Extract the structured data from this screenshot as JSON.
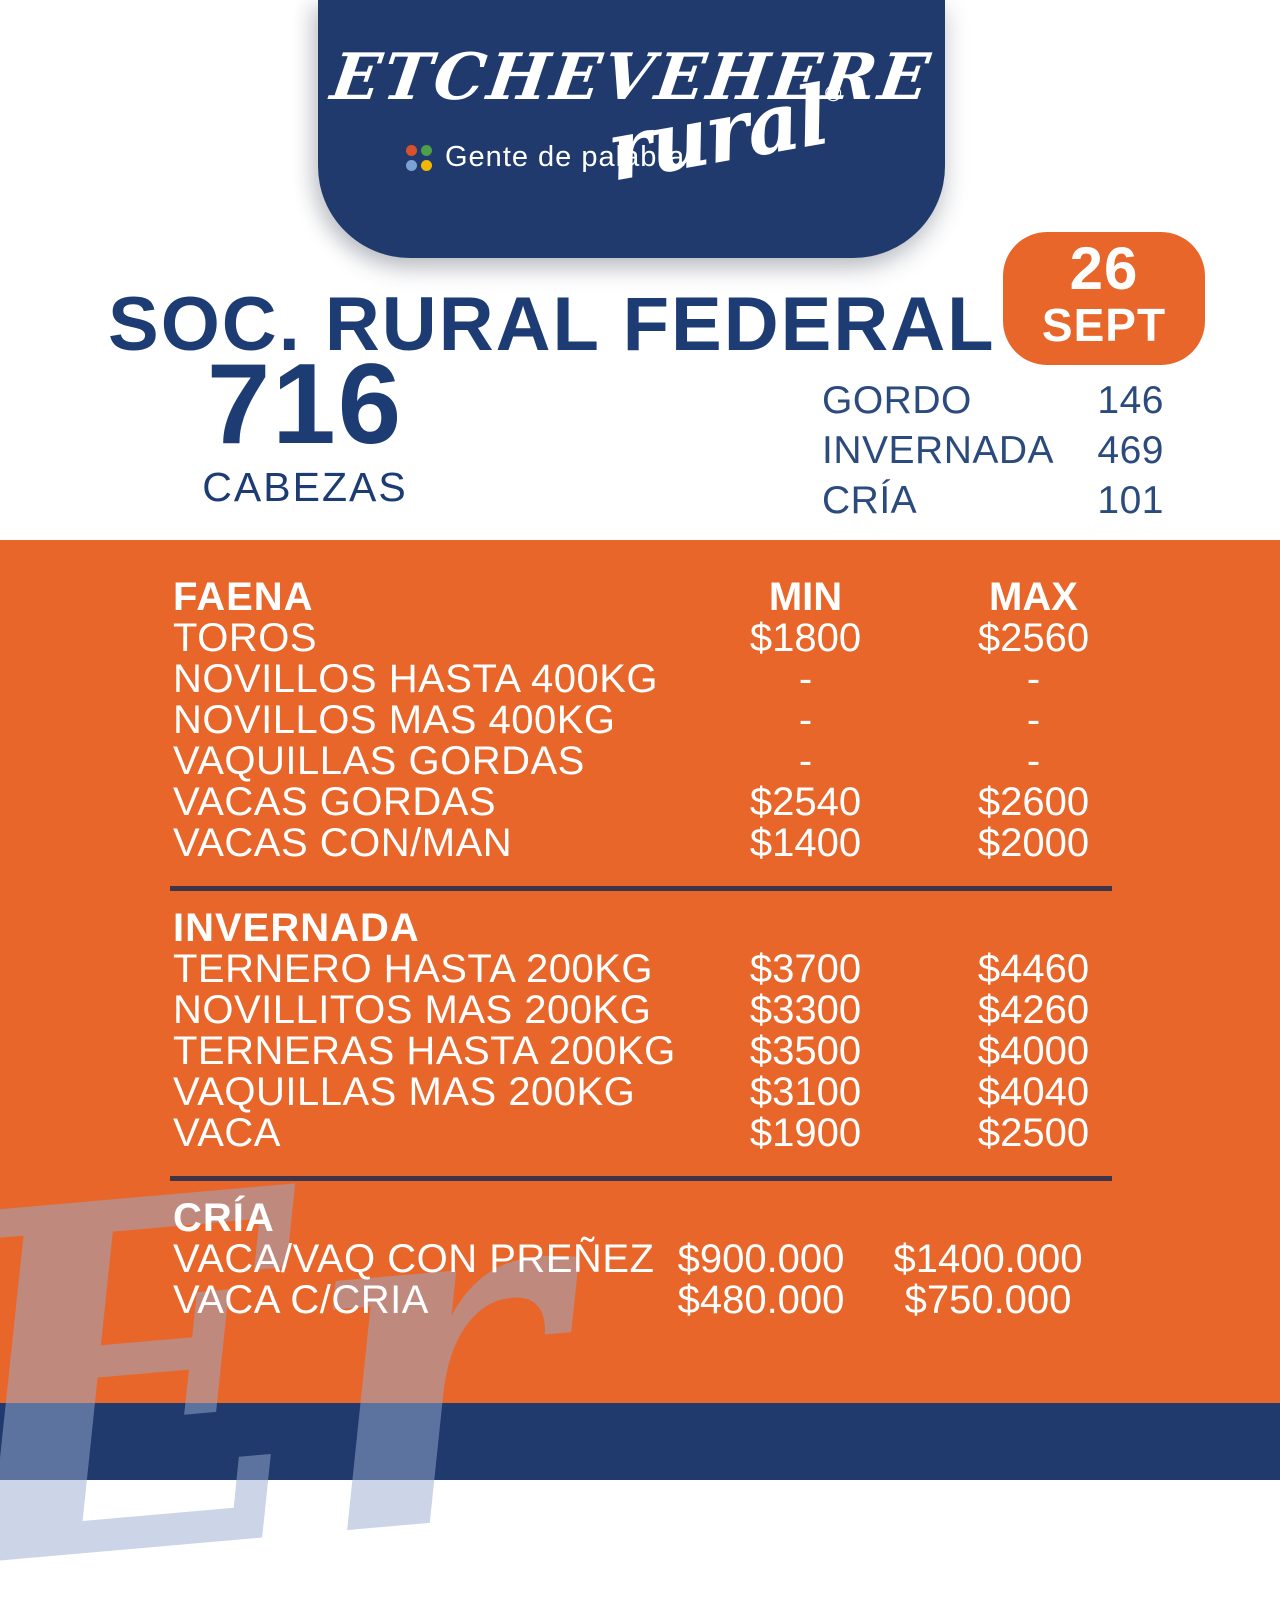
{
  "brand": {
    "logo_main": "ETCHEVEHERE",
    "logo_script": "rural",
    "registered_mark": "®",
    "tagline": "Gente de palabra.",
    "dot_colors": [
      "#d9512c",
      "#4e9e4a",
      "#7ba1d7",
      "#f2b705"
    ]
  },
  "date_badge": {
    "day": "26",
    "month": "SEPT"
  },
  "header": {
    "title": "SOC. RURAL FEDERAL",
    "head_count": "716",
    "head_count_label": "CABEZAS",
    "summary": [
      {
        "label": "GORDO",
        "value": "146"
      },
      {
        "label": "INVERNADA",
        "value": "469"
      },
      {
        "label": "CRÍA",
        "value": "101"
      }
    ]
  },
  "price_table": {
    "columns": {
      "min": "MIN",
      "max": "MAX"
    },
    "sections": [
      {
        "title": "FAENA",
        "rows": [
          {
            "label": "TOROS",
            "min": "$1800",
            "max": "$2560"
          },
          {
            "label": "NOVILLOS HASTA 400KG",
            "min": "-",
            "max": "-"
          },
          {
            "label": "NOVILLOS MAS 400KG",
            "min": "-",
            "max": "-"
          },
          {
            "label": "VAQUILLAS GORDAS",
            "min": "-",
            "max": "-"
          },
          {
            "label": "VACAS GORDAS",
            "min": "$2540",
            "max": "$2600"
          },
          {
            "label": "VACAS CON/MAN",
            "min": "$1400",
            "max": "$2000"
          }
        ]
      },
      {
        "title": "INVERNADA",
        "rows": [
          {
            "label": "TERNERO HASTA 200KG",
            "min": "$3700",
            "max": "$4460"
          },
          {
            "label": "NOVILLITOS MAS 200KG",
            "min": "$3300",
            "max": "$4260"
          },
          {
            "label": "TERNERAS HASTA 200KG",
            "min": "$3500",
            "max": "$4000"
          },
          {
            "label": "VAQUILLAS MAS 200KG",
            "min": "$3100",
            "max": "$4040"
          },
          {
            "label": "VACA",
            "min": "$1900",
            "max": "$2500"
          }
        ]
      },
      {
        "title": "CRÍA",
        "rows": [
          {
            "label": "VACA/VAQ CON PREÑEZ",
            "min": "$900.000",
            "max": "$1400.000"
          },
          {
            "label": "VACA C/CRIA",
            "min": "$480.000",
            "max": "$750.000"
          }
        ]
      }
    ]
  },
  "watermark": {
    "monogram": "Er"
  },
  "colors": {
    "navy": "#203a6d",
    "title_navy": "#1d3c74",
    "stats_navy": "#2b4a7d",
    "orange": "#e8662a",
    "divider": "#3d3448",
    "watermark_blue": "#99add1"
  }
}
